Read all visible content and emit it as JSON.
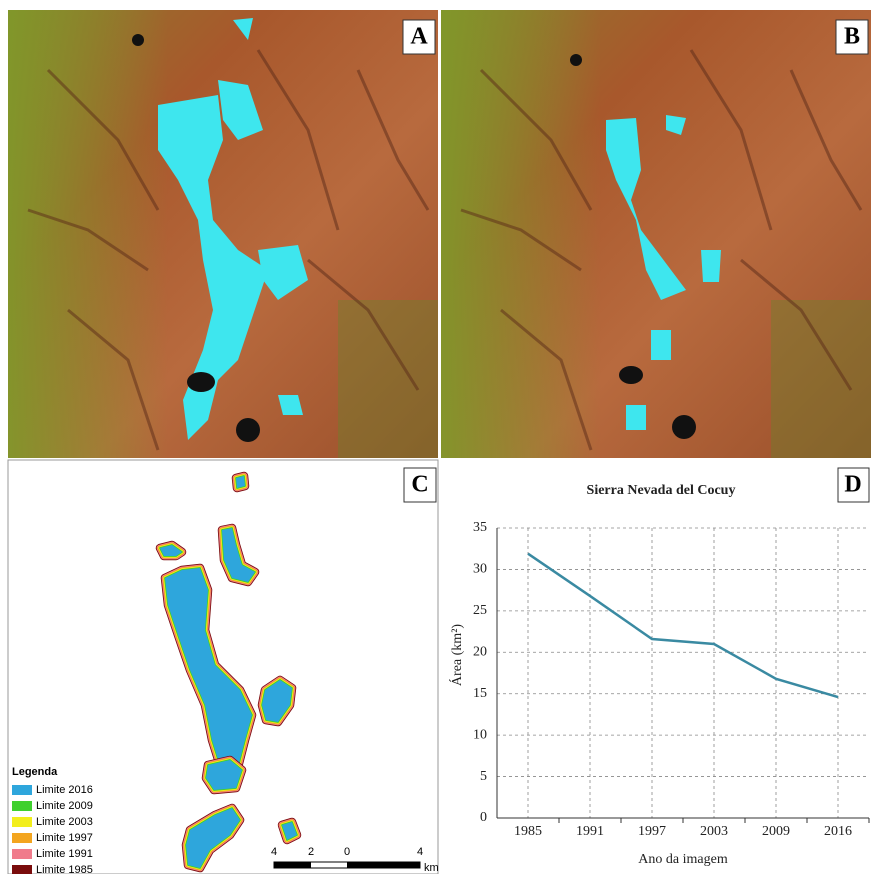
{
  "panels": {
    "a": "A",
    "b": "B",
    "c": "C",
    "d": "D"
  },
  "map": {
    "legend_title": "Legenda",
    "legend": [
      {
        "label": "Limite 2016",
        "color": "#2ea6dc"
      },
      {
        "label": "Limite 2009",
        "color": "#3fd02e"
      },
      {
        "label": "Limite 2003",
        "color": "#f2ee1c"
      },
      {
        "label": "Limite 1997",
        "color": "#f3a51f"
      },
      {
        "label": "Limite 1991",
        "color": "#f07b8b"
      },
      {
        "label": "Limite 1985",
        "color": "#7a0c0c"
      }
    ],
    "scale_labels": [
      "4",
      "2",
      "0",
      "4"
    ],
    "scale_unit": "km"
  },
  "chart_data": {
    "type": "line",
    "title": "Sierra Nevada del Cocuy",
    "x_label": "Ano da imagem",
    "y_label": "Área (km²)",
    "categories": [
      "1985",
      "1991",
      "1997",
      "2003",
      "2009",
      "2016"
    ],
    "values": [
      31.9,
      26.8,
      21.6,
      21.0,
      16.8,
      14.6
    ],
    "color": "#3a8aa2",
    "ylim": [
      0,
      35
    ],
    "yticks": [
      0,
      5,
      10,
      15,
      20,
      25,
      30,
      35
    ],
    "grid": true
  }
}
